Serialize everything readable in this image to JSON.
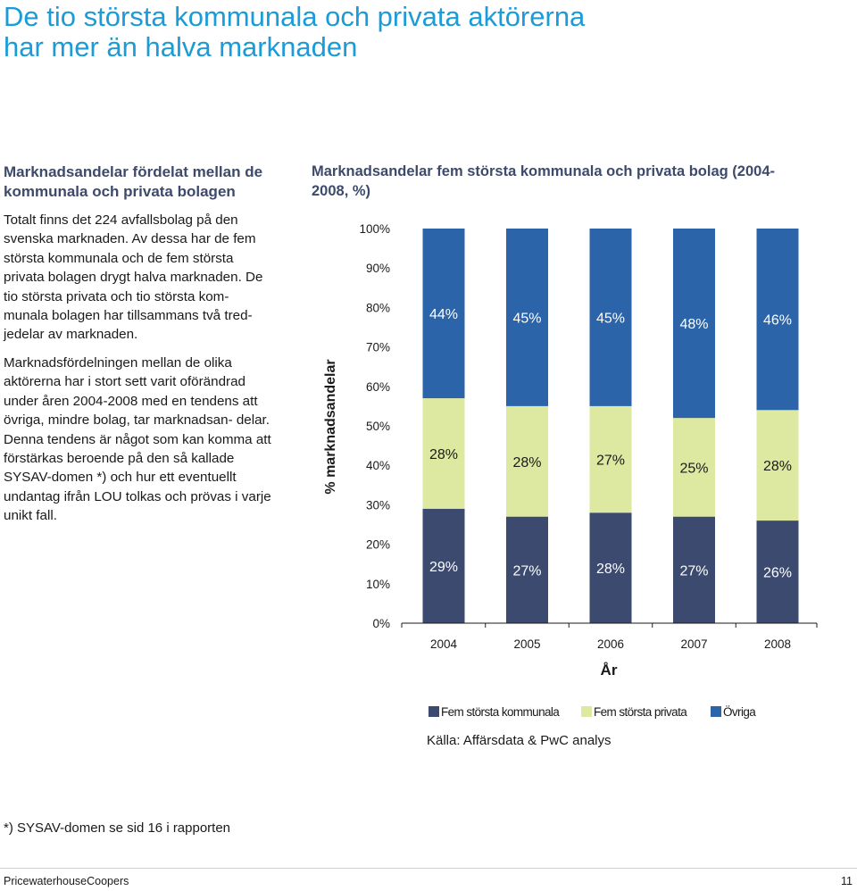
{
  "page": {
    "title": "De tio största kommunala och privata aktörerna har mer än halva marknaden",
    "left_heading": "Marknadsandelar fördelat mellan de kommunala och privata bolagen",
    "paragraphs": [
      "Totalt finns det 224 avfallsbolag på den svenska marknaden. Av dessa har de fem största kommunala och de fem största privata bolagen drygt halva marknaden. De tio största privata och tio största kom- munala bolagen har tillsammans två tred- jedelar av marknaden.",
      "Marknadsfördelningen mellan de olika aktörerna har i stort sett varit oförändrad under åren 2004-2008 med en tendens att övriga, mindre bolag, tar marknadsan- delar. Denna tendens är något som kan komma att förstärkas beroende på den så kallade SYSAV-domen *) och hur ett eventuellt undantag ifrån LOU tolkas och prövas i varje unikt fall."
    ],
    "footnote": "*) SYSAV-domen se sid 16 i rapporten",
    "footer_left": "PricewaterhouseCoopers",
    "page_number": "11"
  },
  "chart_data": {
    "type": "bar",
    "stacked": true,
    "title": "Marknadsandelar fem största kommunala och privata bolag (2004-2008, %)",
    "xlabel": "År",
    "ylabel": "% marknadsandelar",
    "ylim": [
      0,
      100
    ],
    "yticks": [
      "0%",
      "10%",
      "20%",
      "30%",
      "40%",
      "50%",
      "60%",
      "70%",
      "80%",
      "90%",
      "100%"
    ],
    "categories": [
      "2004",
      "2005",
      "2006",
      "2007",
      "2008"
    ],
    "series": [
      {
        "name": "Fem största kommunala",
        "color": "#3b4a6e",
        "values": [
          29,
          27,
          28,
          27,
          26
        ],
        "labels": [
          "29%",
          "27%",
          "28%",
          "27%",
          "26%"
        ]
      },
      {
        "name": "Fem största privata",
        "color": "#dde8a0",
        "values": [
          28,
          28,
          27,
          25,
          28
        ],
        "labels": [
          "28%",
          "28%",
          "27%",
          "25%",
          "28%"
        ]
      },
      {
        "name": "Övriga",
        "color": "#2b64a8",
        "values": [
          44,
          45,
          45,
          48,
          46
        ],
        "labels": [
          "44%",
          "45%",
          "45%",
          "48%",
          "46%"
        ]
      }
    ],
    "legend_position": "bottom",
    "source": "Källa: Affärsdata & PwC analys",
    "grid": false
  }
}
